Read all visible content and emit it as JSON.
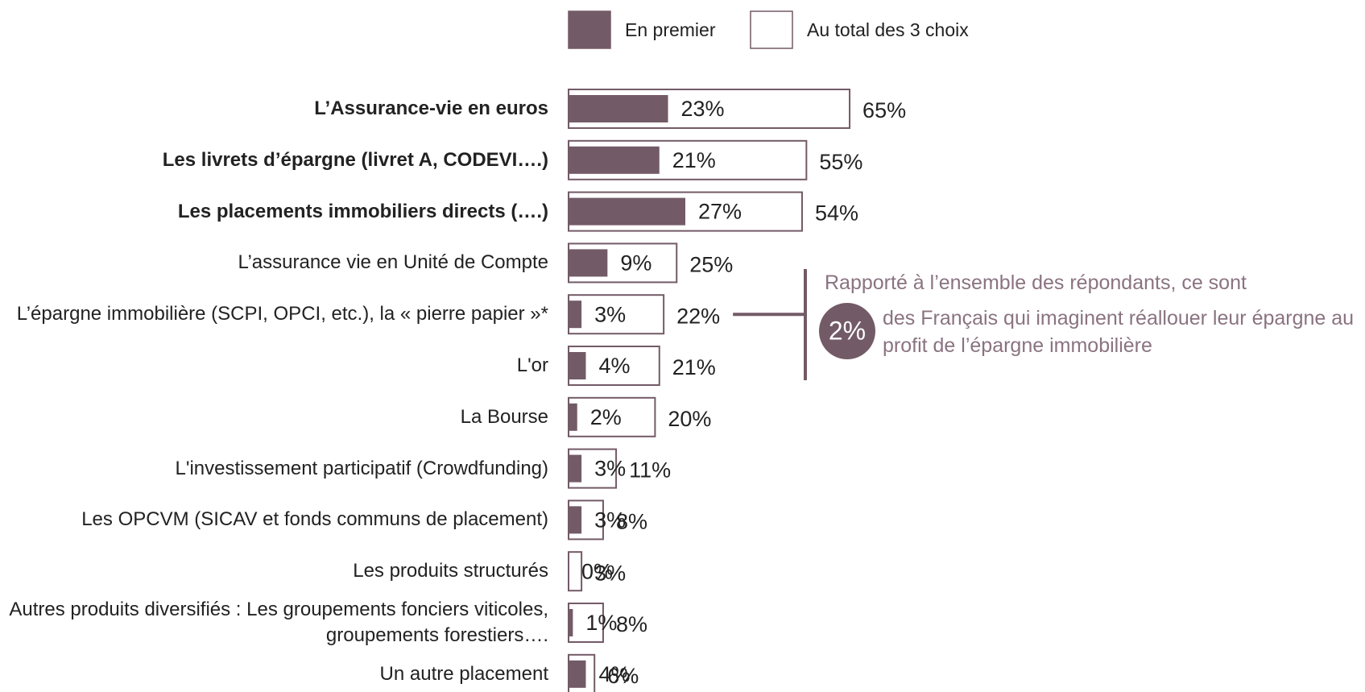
{
  "chart_data": {
    "type": "bar",
    "orientation": "horizontal",
    "categories": [
      "L’Assurance-vie en euros",
      "Les livrets d’épargne (livret A, CODEVI….)",
      "Les placements immobiliers directs (….)",
      "L’assurance vie en Unité de Compte",
      "L’épargne immobilière (SCPI, OPCI, etc.), la « pierre papier »*",
      "L'or",
      "La Bourse",
      "L'investissement participatif (Crowdfunding)",
      "Les OPCVM (SICAV et fonds communs de placement)",
      "Les produits structurés",
      "Autres produits diversifiés : Les groupements fonciers viticoles, groupements forestiers….",
      "Un autre placement"
    ],
    "bold": [
      true,
      true,
      true,
      false,
      false,
      false,
      false,
      false,
      false,
      false,
      false,
      false
    ],
    "series": [
      {
        "name": "En premier",
        "color": "#735a67",
        "style": "filled",
        "values": [
          23,
          21,
          27,
          9,
          3,
          4,
          2,
          3,
          3,
          0,
          1,
          4
        ],
        "value_labels": [
          "23%",
          "21%",
          "27%",
          "9%",
          "3%",
          "4%",
          "2%",
          "3%",
          "3%",
          "0%",
          "1%",
          "4%"
        ]
      },
      {
        "name": "Au total des 3 choix",
        "color": "#735a67",
        "style": "outline",
        "values": [
          65,
          55,
          54,
          25,
          22,
          21,
          20,
          11,
          8,
          3,
          8,
          6
        ],
        "value_labels": [
          "65%",
          "55%",
          "54%",
          "25%",
          "22%",
          "21%",
          "20%",
          "11%",
          "8%",
          "3%",
          "8%",
          "6%"
        ]
      }
    ],
    "annotation": {
      "text_before": "Rapporté à l’ensemble des répondants, ce sont",
      "value": 2,
      "value_label": "2%",
      "text_after": "des Français qui imaginent réallouer leur épargne au profit de l’épargne immobilière",
      "category_index": 4
    }
  }
}
